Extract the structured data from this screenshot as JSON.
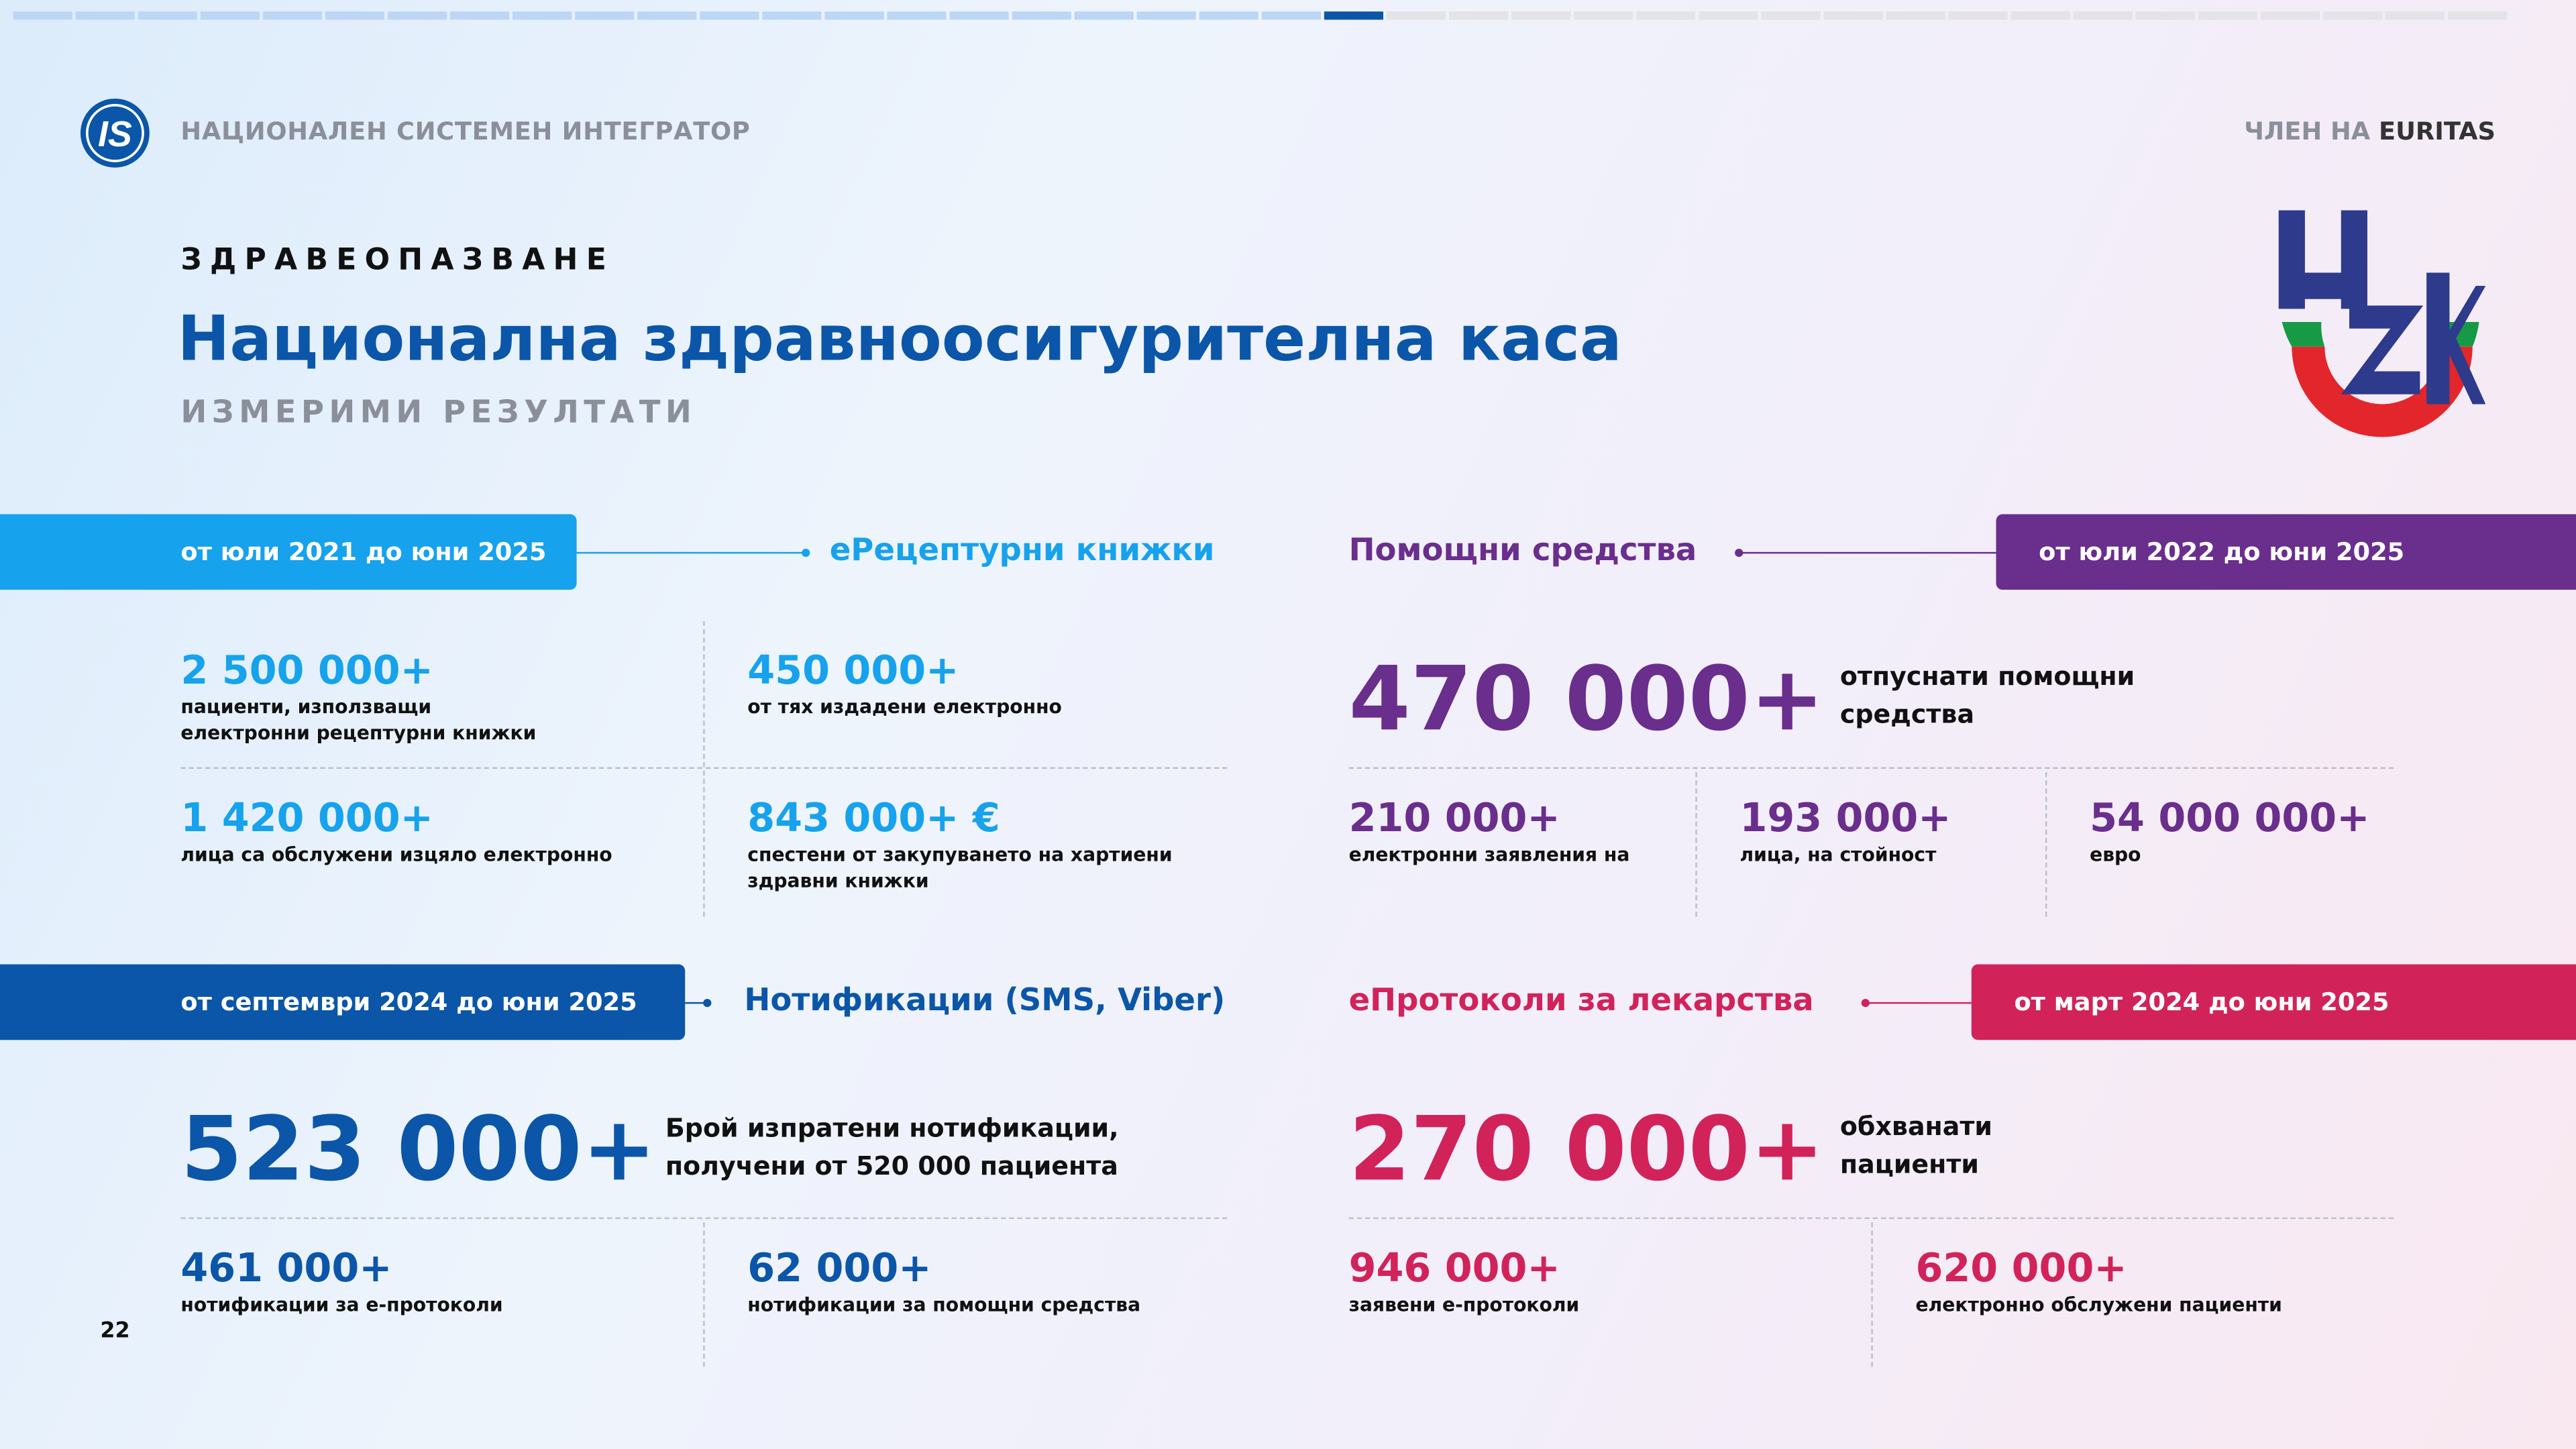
{
  "header": {
    "logo": "IS",
    "org": "НАЦИОНАЛЕН СИСТЕМЕН ИНТЕГРАТОР",
    "member_prefix": "ЧЛЕН НА",
    "member_name": "EURITAS"
  },
  "section": "ЗДРАВЕОПАЗВАНЕ",
  "title": "Национална здравноосигурителна каса",
  "subtitle": "ИЗМЕРИМИ РЕЗУЛТАТИ",
  "page_number": "22",
  "panels": [
    {
      "period": "от юли 2021 до юни 2025",
      "heading": "еРецептурни книжки",
      "color": "#16a2ec",
      "stats": [
        {
          "value": "2 500 000+",
          "label": "пациенти, използващи електронни рецептурни книжки"
        },
        {
          "value": "450 000+",
          "label": "от тях издадени електронно"
        },
        {
          "value": "1 420 000+",
          "label": "лица са обслужени изцяло електронно"
        },
        {
          "value": "843 000+ €",
          "label": "спестени от закупуването на хартиени здравни книжки"
        }
      ]
    },
    {
      "period": "от юли 2022 до юни 2025",
      "heading": "Помощни средства",
      "color": "#6a2e8c",
      "main": {
        "value": "470 000+",
        "label": "отпуснати помощни средства"
      },
      "stats": [
        {
          "value": "210 000+",
          "label": "електронни заявления на"
        },
        {
          "value": "193 000+",
          "label": "лица, на стойност"
        },
        {
          "value": "54 000 000+",
          "label": "евро"
        }
      ]
    },
    {
      "period": "от септември 2024 до юни 2025",
      "heading": "Нотификации (SMS, Viber)",
      "color": "#0b56a8",
      "main": {
        "value": "523 000+",
        "label": "Брой изпратени нотификации, получени от 520 000 пациента"
      },
      "stats": [
        {
          "value": "461 000+",
          "label": "нотификации за е-протоколи"
        },
        {
          "value": "62 000+",
          "label": "нотификации за помощни средства"
        }
      ]
    },
    {
      "period": "от март 2024 до юни 2025",
      "heading": "еПротоколи за лекарства",
      "color": "#d1235a",
      "main": {
        "value": "270 000+",
        "label": "обхванати пациенти"
      },
      "stats": [
        {
          "value": "946 000+",
          "label": "заявени е-протоколи"
        },
        {
          "value": "620 000+",
          "label": "електронно обслужени пациенти"
        }
      ]
    }
  ]
}
